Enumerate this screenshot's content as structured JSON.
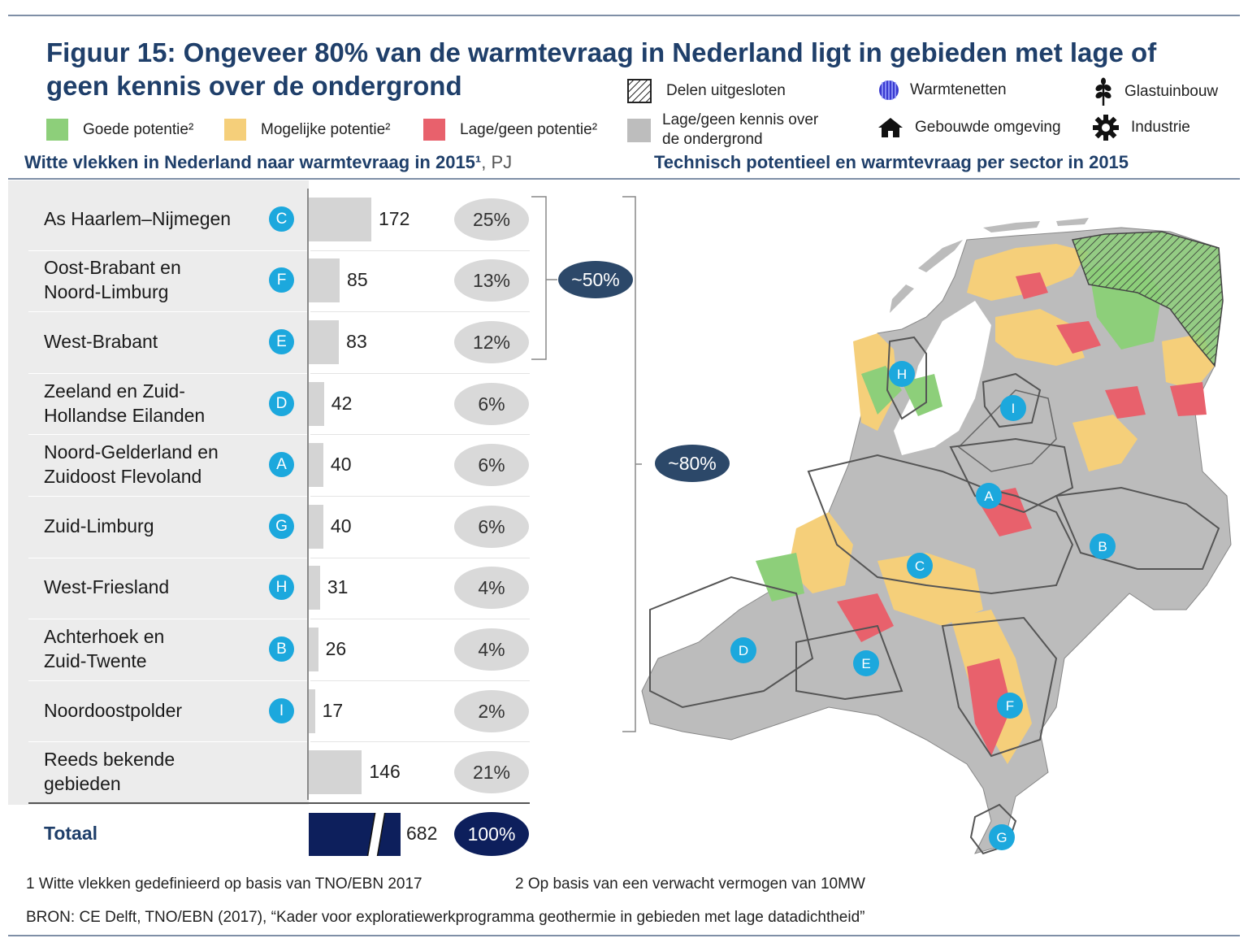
{
  "title": "Figuur 15: Ongeveer 80% van de warmtevraag in Nederland ligt in gebieden met lage of geen kennis over de ondergrond",
  "legend": {
    "goede": "Goede potentie²",
    "mogelijke": "Mogelijke potentie²",
    "lage": "Lage/geen potentie²",
    "kennis_line1": "Lage/geen kennis over",
    "kennis_line2": "de ondergrond",
    "uitgesloten": "Delen uitgesloten",
    "warmtenetten": "Warmtenetten",
    "glastuinbouw": "Glastuinbouw",
    "gebouwde": "Gebouwde omgeving",
    "industrie": "Industrie"
  },
  "colors": {
    "goede": "#8dcf7a",
    "mogelijke": "#f5cf7a",
    "lage": "#e8616c",
    "kennis": "#bdbdbd",
    "title": "#1f3f6a",
    "badge": "#1ca8dd",
    "total": "#0d1f5c",
    "callout": "#2c4869"
  },
  "left_heading": "Witte vlekken in Nederland naar warmtevraag in 2015¹",
  "left_unit": ", PJ",
  "right_heading": "Technisch potentieel en warmtevraag per sector in 2015",
  "chart_data": {
    "type": "bar",
    "orientation": "horizontal",
    "categories": [
      "As Haarlem–Nijmegen",
      "Oost-Brabant en Noord-Limburg",
      "West-Brabant",
      "Zeeland en Zuid-Hollandse Eilanden",
      "Noord-Gelderland en Zuidoost Flevoland",
      "Zuid-Limburg",
      "West-Friesland",
      "Achterhoek en Zuid-Twente",
      "Noordoostpolder",
      "Reeds bekende gebieden"
    ],
    "values": [
      172,
      85,
      83,
      42,
      40,
      40,
      31,
      26,
      17,
      146
    ],
    "shares": [
      "25%",
      "13%",
      "12%",
      "6%",
      "6%",
      "6%",
      "4%",
      "4%",
      "2%",
      "21%"
    ],
    "region_codes": [
      "C",
      "F",
      "E",
      "D",
      "A",
      "G",
      "H",
      "B",
      "I",
      ""
    ],
    "total": {
      "label": "Totaal",
      "value": 682,
      "share": "100%"
    },
    "unit": "PJ"
  },
  "rows": [
    {
      "line1": "As Haarlem–Nijmegen",
      "line2": "",
      "code": "C",
      "value": "172",
      "share": "25%"
    },
    {
      "line1": "Oost-Brabant en",
      "line2": "Noord-Limburg",
      "code": "F",
      "value": "85",
      "share": "13%"
    },
    {
      "line1": "West-Brabant",
      "line2": "",
      "code": "E",
      "value": "83",
      "share": "12%"
    },
    {
      "line1": "Zeeland en Zuid-",
      "line2": "Hollandse Eilanden",
      "code": "D",
      "value": "42",
      "share": "6%"
    },
    {
      "line1": "Noord-Gelderland en",
      "line2": "Zuidoost Flevoland",
      "code": "A",
      "value": "40",
      "share": "6%"
    },
    {
      "line1": "Zuid-Limburg",
      "line2": "",
      "code": "G",
      "value": "40",
      "share": "6%"
    },
    {
      "line1": "West-Friesland",
      "line2": "",
      "code": "H",
      "value": "31",
      "share": "4%"
    },
    {
      "line1": "Achterhoek en",
      "line2": "Zuid-Twente",
      "code": "B",
      "value": "26",
      "share": "4%"
    },
    {
      "line1": "Noordoostpolder",
      "line2": "",
      "code": "I",
      "value": "17",
      "share": "2%"
    },
    {
      "line1": "Reeds bekende",
      "line2": "gebieden",
      "code": "",
      "value": "146",
      "share": "21%"
    }
  ],
  "total": {
    "label": "Totaal",
    "value": "682",
    "share": "100%"
  },
  "callouts": {
    "fifty": "~50%",
    "eighty": "~80%"
  },
  "map_regions": [
    "C",
    "F",
    "E",
    "D",
    "A",
    "G",
    "H",
    "B",
    "I"
  ],
  "footnotes": {
    "one": "1 Witte vlekken gedefinieerd op basis van TNO/EBN 2017",
    "two": "2 Op basis van een verwacht vermogen van 10MW",
    "source": "BRON: CE Delft, TNO/EBN (2017), “Kader voor exploratiewerkprogramma geothermie in gebieden met lage datadichtheid”"
  }
}
